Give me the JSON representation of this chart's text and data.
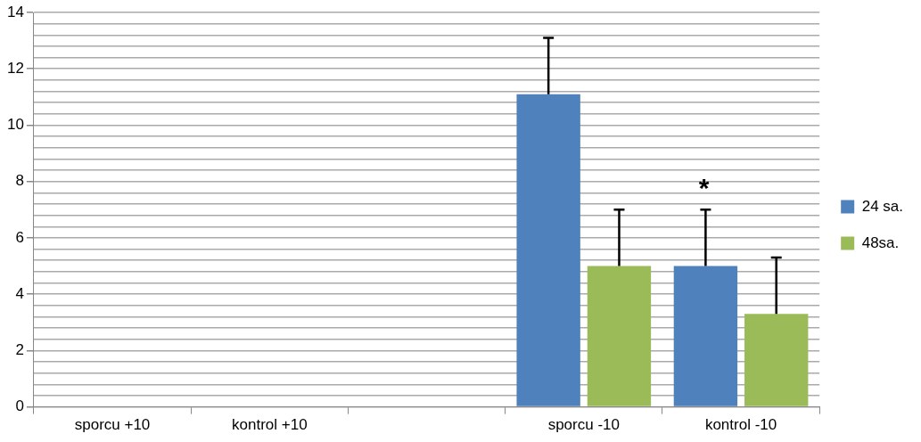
{
  "chart_data": {
    "type": "bar",
    "categories": [
      "sporcu +10",
      "kontrol +10",
      null,
      "sporcu -10",
      "kontrol -10"
    ],
    "series": [
      {
        "name": "24 sa.",
        "color": "#4f81bd",
        "values": [
          null,
          null,
          null,
          11.1,
          5.0
        ],
        "errors": [
          null,
          null,
          null,
          [
            11.1,
            13.1
          ],
          [
            5.0,
            7.0
          ]
        ]
      },
      {
        "name": "48sa.",
        "color": "#9bbb59",
        "values": [
          null,
          null,
          null,
          5.0,
          3.3
        ],
        "errors": [
          null,
          null,
          null,
          [
            5.0,
            7.0
          ],
          [
            3.3,
            5.3
          ]
        ]
      }
    ],
    "ylim": [
      0,
      14
    ],
    "yticks": [
      0,
      {
        "value": 0.4,
        "label": null
      },
      {
        "value": 0.8,
        "label": null
      },
      {
        "value": 1.2,
        "label": null
      },
      {
        "value": 1.6,
        "label": null
      },
      2,
      {
        "value": 2.4,
        "label": null
      },
      {
        "value": 2.8,
        "label": null
      },
      {
        "value": 3.2,
        "label": null
      },
      {
        "value": 3.6,
        "label": null
      },
      4,
      {
        "value": 4.4,
        "label": null
      },
      {
        "value": 4.8,
        "label": null
      },
      {
        "value": 5.2,
        "label": null
      },
      {
        "value": 5.6,
        "label": null
      },
      6,
      {
        "value": 6.4,
        "label": null
      },
      {
        "value": 6.8,
        "label": null
      },
      {
        "value": 7.2,
        "label": null
      },
      {
        "value": 7.6,
        "label": null
      },
      8,
      {
        "value": 8.4,
        "label": null
      },
      {
        "value": 8.8,
        "label": null
      },
      {
        "value": 9.2,
        "label": null
      },
      {
        "value": 9.6,
        "label": null
      },
      10,
      {
        "value": 10.4,
        "label": null
      },
      {
        "value": 10.8,
        "label": null
      },
      {
        "value": 11.2,
        "label": null
      },
      {
        "value": 11.6,
        "label": null
      },
      12,
      {
        "value": 12.4,
        "label": null
      },
      {
        "value": 12.8,
        "label": null
      },
      {
        "value": 13.2,
        "label": null
      },
      {
        "value": 13.6,
        "label": null
      },
      14
    ],
    "grid": "y",
    "legend": "right",
    "annotations": [
      "*"
    ]
  }
}
